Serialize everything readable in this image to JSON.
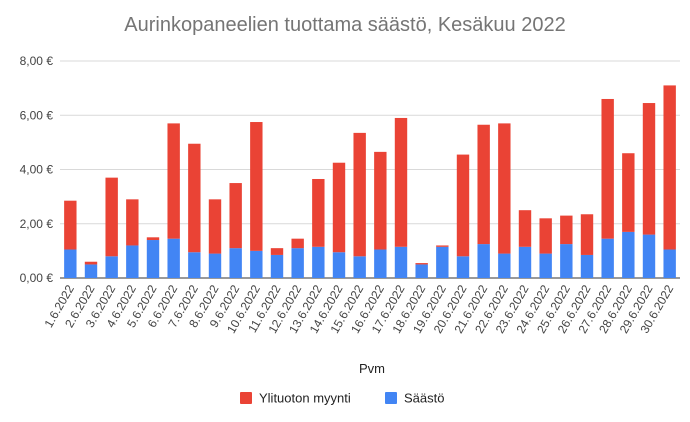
{
  "chart_data": {
    "type": "bar",
    "stacked": true,
    "title": "Aurinkopaneelien tuottama säästö, Kesäkuu 2022",
    "xlabel": "Pvm",
    "ylabel": "",
    "ylim": [
      0,
      8
    ],
    "y_ticks": [
      "0,00 €",
      "2,00 €",
      "4,00 €",
      "6,00 €",
      "8,00 €"
    ],
    "grid": true,
    "legend_position": "bottom",
    "categories": [
      "1.6.2022",
      "2.6.2022",
      "3.6.2022",
      "4.6.2022",
      "5.6.2022",
      "6.6.2022",
      "7.6.2022",
      "8.6.2022",
      "9.6.2022",
      "10.6.2022",
      "11.6.2022",
      "12.6.2022",
      "13.6.2022",
      "14.6.2022",
      "15.6.2022",
      "16.6.2022",
      "17.6.2022",
      "18.6.2022",
      "19.6.2022",
      "20.6.2022",
      "21.6.2022",
      "22.6.2022",
      "23.6.2022",
      "24.6.2022",
      "25.6.2022",
      "26.6.2022",
      "27.6.2022",
      "28.6.2022",
      "29.6.2022",
      "30.6.2022"
    ],
    "series": [
      {
        "name": "Säästö",
        "color": "#4285f4",
        "values": [
          1.05,
          0.5,
          0.8,
          1.2,
          1.4,
          1.45,
          0.95,
          0.9,
          1.1,
          1.0,
          0.85,
          1.1,
          1.15,
          0.95,
          0.8,
          1.05,
          1.15,
          0.5,
          1.15,
          0.8,
          1.25,
          0.9,
          1.15,
          0.9,
          1.25,
          0.85,
          1.45,
          1.7,
          1.6,
          1.05
        ]
      },
      {
        "name": "Ylituoton myynti",
        "color": "#ea4335",
        "values": [
          1.8,
          0.1,
          2.9,
          1.7,
          0.1,
          4.25,
          4.0,
          2.0,
          2.4,
          4.75,
          0.25,
          0.35,
          2.5,
          3.3,
          4.55,
          3.6,
          4.75,
          0.05,
          0.05,
          3.75,
          4.4,
          4.8,
          1.35,
          1.3,
          1.05,
          1.5,
          5.15,
          2.9,
          4.85,
          6.05
        ]
      }
    ]
  }
}
